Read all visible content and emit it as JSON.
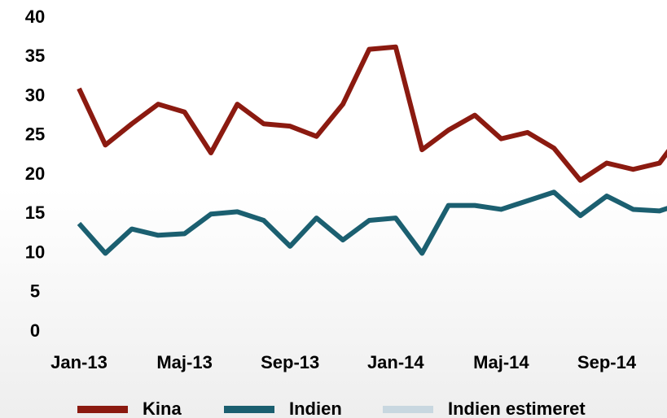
{
  "chart_data": {
    "type": "line",
    "categories": [
      "Jan-13",
      null,
      null,
      null,
      "Maj-13",
      null,
      null,
      null,
      "Sep-13",
      null,
      null,
      null,
      "Jan-14",
      null,
      null,
      null,
      "Maj-14",
      null,
      null,
      null,
      "Sep-14",
      null,
      null,
      null
    ],
    "series": [
      {
        "name": "Kina",
        "color": "#8b1a10",
        "values": [
          31,
          23.8,
          26.5,
          29,
          28,
          22.8,
          29,
          26.5,
          26.2,
          24.9,
          29,
          36,
          36.3,
          23.2,
          25.7,
          27.6,
          24.6,
          25.4,
          23.4,
          19.3,
          21.5,
          20.7,
          21.5,
          26
        ]
      },
      {
        "name": "Indien",
        "color": "#1b5f70",
        "values": [
          13.8,
          10,
          13.1,
          12.3,
          12.5,
          15,
          15.3,
          14.2,
          10.9,
          14.5,
          11.7,
          14.2,
          14.5,
          10,
          16.1,
          16.1,
          15.6,
          16.7,
          17.8,
          14.8,
          17.3,
          15.6,
          15.4,
          16.5
        ]
      },
      {
        "name": "Indien estimeret",
        "color": "#c8d7e0",
        "values": [
          null,
          null,
          null,
          null,
          null,
          null,
          null,
          null,
          null,
          null,
          null,
          null,
          null,
          null,
          null,
          null,
          null,
          null,
          null,
          null,
          null,
          null,
          null,
          null
        ]
      }
    ],
    "ylim": [
      0,
      40
    ],
    "yticks": [
      0,
      5,
      10,
      15,
      20,
      25,
      30,
      35,
      40
    ]
  }
}
